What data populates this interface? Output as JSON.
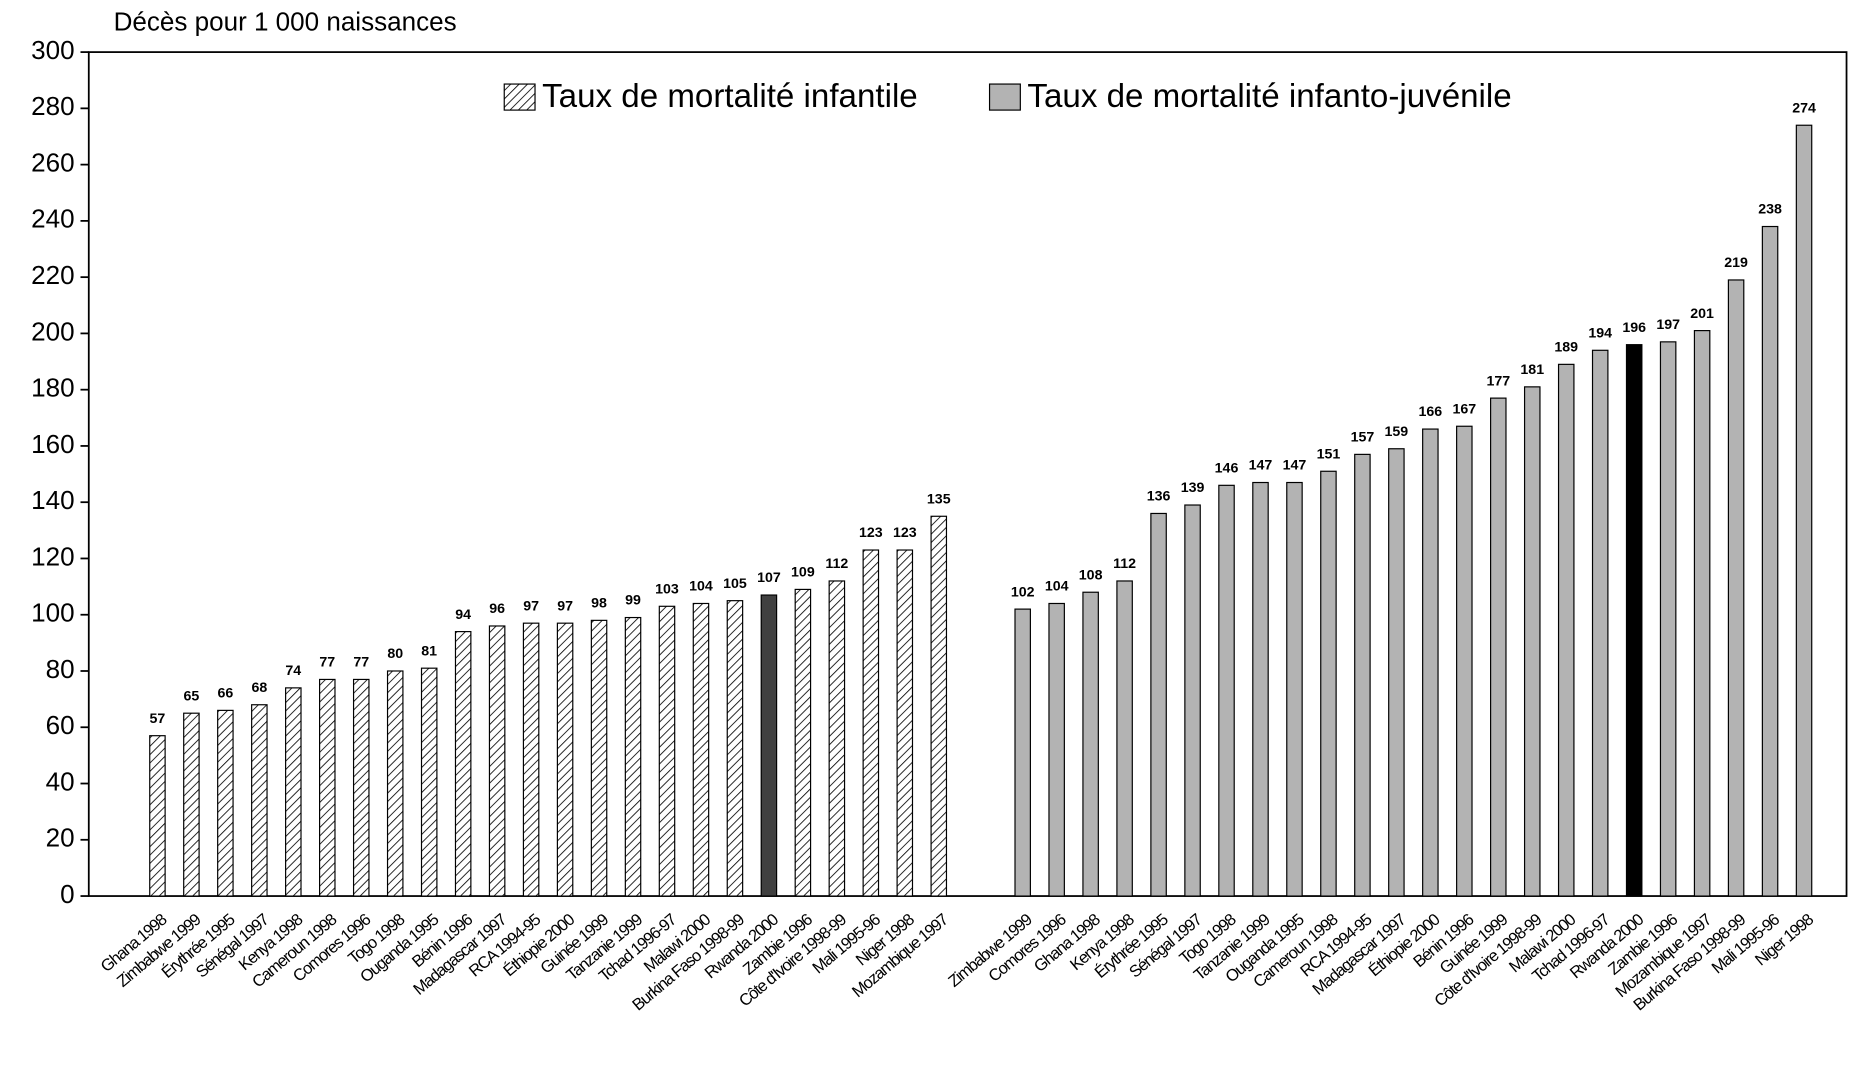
{
  "chart_data": {
    "type": "bar",
    "y_axis_label": "Décès pour 1 000 naissances",
    "ylim": [
      0,
      300
    ],
    "yticks": [
      0,
      20,
      40,
      60,
      80,
      100,
      120,
      140,
      160,
      180,
      200,
      220,
      240,
      260,
      280,
      300
    ],
    "legend_position": "top",
    "series": [
      {
        "name": "Taux de mortalité infantile",
        "color": "#000000",
        "hatch": true,
        "highlight_index": 18,
        "highlight_color": "#404040",
        "categories": [
          "Ghana 1998",
          "Zimbabwe 1999",
          "Érythrée 1995",
          "Sénégal 1997",
          "Kenya 1998",
          "Cameroun 1998",
          "Comores 1996",
          "Togo 1998",
          "Ouganda 1995",
          "Bénin 1996",
          "Madagascar 1997",
          "RCA 1994-95",
          "Éthiopie 2000",
          "Guinée 1999",
          "Tanzanie 1999",
          "Tchad 1996-97",
          "Malawi 2000",
          "Burkina Faso 1998-99",
          "Rwanda 2000",
          "Zambie 1996",
          "Côte d'Ivoire 1998-99",
          "Mali 1995-96",
          "Niger 1998",
          "Mozambique 1997"
        ],
        "values": [
          57,
          65,
          66,
          68,
          74,
          77,
          77,
          80,
          81,
          94,
          96,
          97,
          97,
          98,
          99,
          103,
          104,
          105,
          107,
          109,
          112,
          123,
          123,
          135
        ]
      },
      {
        "name": "Taux de mortalité infanto-juvénile",
        "color": "#b3b3b3",
        "hatch": false,
        "highlight_index": 18,
        "highlight_color": "#000000",
        "categories": [
          "Zimbabwe 1999",
          "Comores 1996",
          "Ghana 1998",
          "Kenya 1998",
          "Érythrée 1995",
          "Sénégal 1997",
          "Togo 1998",
          "Tanzanie 1999",
          "Ouganda 1995",
          "Cameroun 1998",
          "RCA 1994-95",
          "Madagascar 1997",
          "Éthiopie 2000",
          "Bénin 1996",
          "Guinée 1999",
          "Côte d'Ivoire 1998-99",
          "Malawi 2000",
          "Tchad 1996-97",
          "Rwanda 2000",
          "Zambie 1996",
          "Mozambique 1997",
          "Burkina Faso 1998-99",
          "Mali 1995-96",
          "Niger 1998"
        ],
        "values": [
          102,
          104,
          108,
          112,
          136,
          139,
          146,
          147,
          147,
          151,
          157,
          159,
          166,
          167,
          177,
          181,
          189,
          194,
          196,
          197,
          201,
          219,
          238,
          274
        ]
      }
    ]
  }
}
